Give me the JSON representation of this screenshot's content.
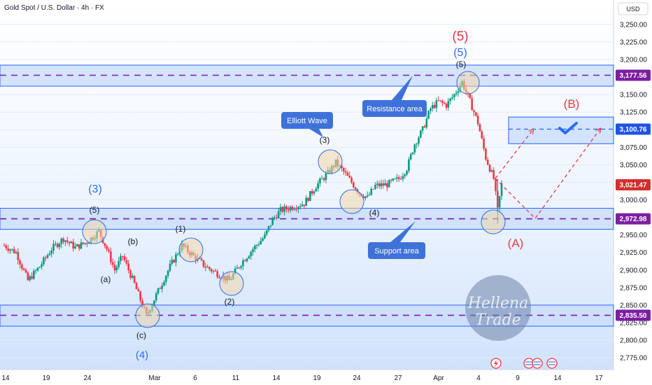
{
  "header": {
    "title": "Gold Spot / U.S. Dollar · 4h · FX",
    "currency": "USD"
  },
  "chart_data": {
    "type": "candlestick",
    "symbol": "Gold Spot / U.S. Dollar",
    "interval": "4h",
    "ylim": [
      2760,
      3265
    ],
    "y_ticks": [
      2775,
      2800,
      2825,
      2850,
      2875,
      2900,
      2925,
      2950,
      2975,
      3000,
      3025,
      3050,
      3075,
      3100,
      3125,
      3150,
      3175,
      3200,
      3225,
      3250
    ],
    "y_tick_labels": [
      "2,775.00",
      "2,800.00",
      "2,825.00",
      "2,850.00",
      "2,875.00",
      "2,900.00",
      "2,925.00",
      "2,950.00",
      "2,975.00",
      "3,000.00",
      "3,025.00",
      "3,050.00",
      "3,075.00",
      "3,100.00",
      "3,125.00",
      "3,150.00",
      "3,175.00",
      "3,200.00",
      "3,225.00",
      "3,250.00"
    ],
    "x_labels": [
      "14",
      "19",
      "24",
      "Mar",
      "6",
      "11",
      "14",
      "19",
      "24",
      "27",
      "Apr",
      "4",
      "9",
      "14",
      "17"
    ],
    "price_tags": [
      {
        "value": 3177.56,
        "label": "3,177.56",
        "color": "#7b1fa2"
      },
      {
        "value": 3100.76,
        "label": "3,100.76",
        "color": "#1e53e5"
      },
      {
        "value": 3021.47,
        "label": "3,021.47",
        "color": "#d32f2f"
      },
      {
        "value": 2972.98,
        "label": "2,972.98",
        "color": "#7b1fa2"
      },
      {
        "value": 2835.5,
        "label": "2,835.50",
        "color": "#7b1fa2"
      }
    ],
    "zones": [
      {
        "name": "resistance-zone",
        "from": 3162,
        "to": 3192
      },
      {
        "name": "support-zone",
        "from": 2958,
        "to": 2988
      },
      {
        "name": "lower-zone",
        "from": 2820,
        "to": 2850
      },
      {
        "name": "target-zone",
        "from": 3080,
        "to": 3118
      }
    ],
    "path_points": [
      {
        "x": 0,
        "y": 2935
      },
      {
        "x": 3,
        "y": 2925
      },
      {
        "x": 6,
        "y": 2885
      },
      {
        "x": 9,
        "y": 2905
      },
      {
        "x": 12,
        "y": 2930
      },
      {
        "x": 15,
        "y": 2945
      },
      {
        "x": 18,
        "y": 2932
      },
      {
        "x": 21,
        "y": 2940
      },
      {
        "x": 24,
        "y": 2955
      },
      {
        "x": 26,
        "y": 2930
      },
      {
        "x": 28,
        "y": 2900
      },
      {
        "x": 30,
        "y": 2920
      },
      {
        "x": 33,
        "y": 2880
      },
      {
        "x": 36,
        "y": 2835
      },
      {
        "x": 39,
        "y": 2870
      },
      {
        "x": 42,
        "y": 2905
      },
      {
        "x": 45,
        "y": 2935
      },
      {
        "x": 48,
        "y": 2920
      },
      {
        "x": 51,
        "y": 2905
      },
      {
        "x": 54,
        "y": 2895
      },
      {
        "x": 57,
        "y": 2885
      },
      {
        "x": 60,
        "y": 2910
      },
      {
        "x": 63,
        "y": 2930
      },
      {
        "x": 66,
        "y": 2948
      },
      {
        "x": 68,
        "y": 2972
      },
      {
        "x": 70,
        "y": 2985
      },
      {
        "x": 73,
        "y": 2990
      },
      {
        "x": 76,
        "y": 2995
      },
      {
        "x": 79,
        "y": 3020
      },
      {
        "x": 82,
        "y": 3038
      },
      {
        "x": 84,
        "y": 3053
      },
      {
        "x": 86,
        "y": 3040
      },
      {
        "x": 88,
        "y": 3025
      },
      {
        "x": 90,
        "y": 3010
      },
      {
        "x": 92,
        "y": 3003
      },
      {
        "x": 94,
        "y": 3020
      },
      {
        "x": 97,
        "y": 3022
      },
      {
        "x": 100,
        "y": 3030
      },
      {
        "x": 102,
        "y": 3045
      },
      {
        "x": 104,
        "y": 3080
      },
      {
        "x": 106,
        "y": 3100
      },
      {
        "x": 108,
        "y": 3130
      },
      {
        "x": 110,
        "y": 3140
      },
      {
        "x": 112,
        "y": 3135
      },
      {
        "x": 114,
        "y": 3150
      },
      {
        "x": 116,
        "y": 3168
      },
      {
        "x": 118,
        "y": 3140
      },
      {
        "x": 120,
        "y": 3110
      },
      {
        "x": 122,
        "y": 3060
      },
      {
        "x": 124,
        "y": 3030
      },
      {
        "x": 125,
        "y": 2985
      },
      {
        "x": 126,
        "y": 3022
      }
    ],
    "x_domain": [
      0,
      150
    ],
    "annotations": {
      "elliott_wave_label": "Elliott Wave",
      "resistance_label": "Resistance area",
      "support_label": "Support area",
      "wave_labels": {
        "big5_red": "(5)",
        "big5_blue": "(5)",
        "small5_top": "(5)",
        "wave3_top": "(3)",
        "wave4_mid": "(4)",
        "left3_blue": "(3)",
        "left5": "(5)",
        "b_lower": "(b)",
        "a_lower": "(a)",
        "c_lower": "(c)",
        "w1": "(1)",
        "w2": "(2)",
        "left4_blue": "(4)",
        "A_red": "(A)",
        "B_red": "(B)"
      }
    },
    "watermark": "Hellena Trade",
    "colors": {
      "bull": "#089981",
      "bear": "#f23645",
      "zone_fill": "#c8dcff",
      "zone_stroke": "#2962ff",
      "dash": "#7b1fa2",
      "red_text": "#e63946",
      "blue_text": "#2a6df4",
      "callout": "#3f72d9"
    }
  }
}
